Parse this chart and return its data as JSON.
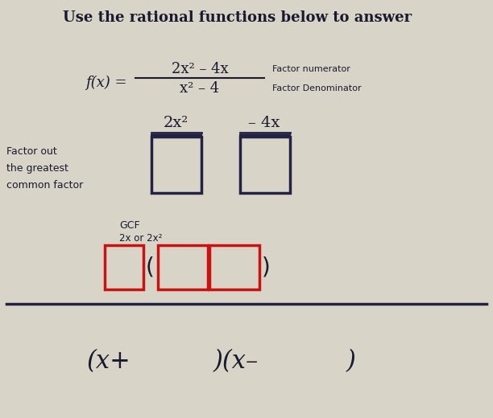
{
  "title": "Use the rational functions below to answer",
  "title_fontsize": 13,
  "title_fontweight": "bold",
  "bg_color": "#d8d4c8",
  "text_color": "#1a1a2e",
  "box_color_dark": "#222244",
  "box_color_red": "#cc1111",
  "fraction_numerator": "2x² – 4x",
  "fraction_denominator": "x² – 4",
  "label_numerator": "Factor numerator",
  "label_denominator": "Factor Denominator",
  "fx_label": "f(x) =",
  "term1": "2x²",
  "term2": "– 4x",
  "factor_out_label": "Factor out\nthe greatest\ncommon factor",
  "gcf_label": "GCF",
  "gcf_sub": "2x or 2x²",
  "bottom_expr1": "(x+",
  "bottom_expr2": ")(x–",
  "bottom_expr3": ")"
}
